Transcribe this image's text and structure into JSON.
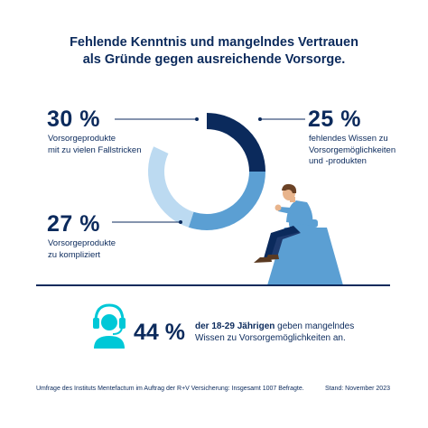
{
  "title_line1": "Fehlende Kenntnis und mangelndes Vertrauen",
  "title_line2": "als Gründe gegen ausreichende Vorsorge.",
  "chart_data": {
    "type": "pie",
    "categories": [
      "fehlendes Wissen zu Vorsorgemöglichkeiten und -produkten",
      "Vorsorgeprodukte mit zu vielen Fallstricken",
      "Vorsorgeprodukte zu kompliziert"
    ],
    "values": [
      25,
      30,
      27
    ],
    "unit": "%",
    "colors": [
      "#0b2a5c",
      "#5b9fd3",
      "#bcdaf1"
    ]
  },
  "labels": {
    "p25": "25 %",
    "p25_l1": "fehlendes Wissen zu",
    "p25_l2": "Vorsorgemöglichkeiten",
    "p25_l3": "und -produkten",
    "p30": "30 %",
    "p30_l1": "Vorsorgeprodukte",
    "p30_l2": "mit zu vielen Fallstricken",
    "p27": "27 %",
    "p27_l1": "Vorsorgeprodukte",
    "p27_l2": "zu kompliziert"
  },
  "highlight": {
    "pct": "44 %",
    "bold_text": "der 18-29 Jährigen",
    "text_rest": " geben mangelndes",
    "line2": "Wissen zu Vorsorgemöglichkeiten an.",
    "icon": "headset-person-icon",
    "icon_color": "#00c8d7"
  },
  "footer": {
    "source": "Umfrage des Instituts Mentefactum im Auftrag der R+V Versicherung: Insgesamt 1007 Befragte.",
    "date": "Stand: November 2023"
  }
}
